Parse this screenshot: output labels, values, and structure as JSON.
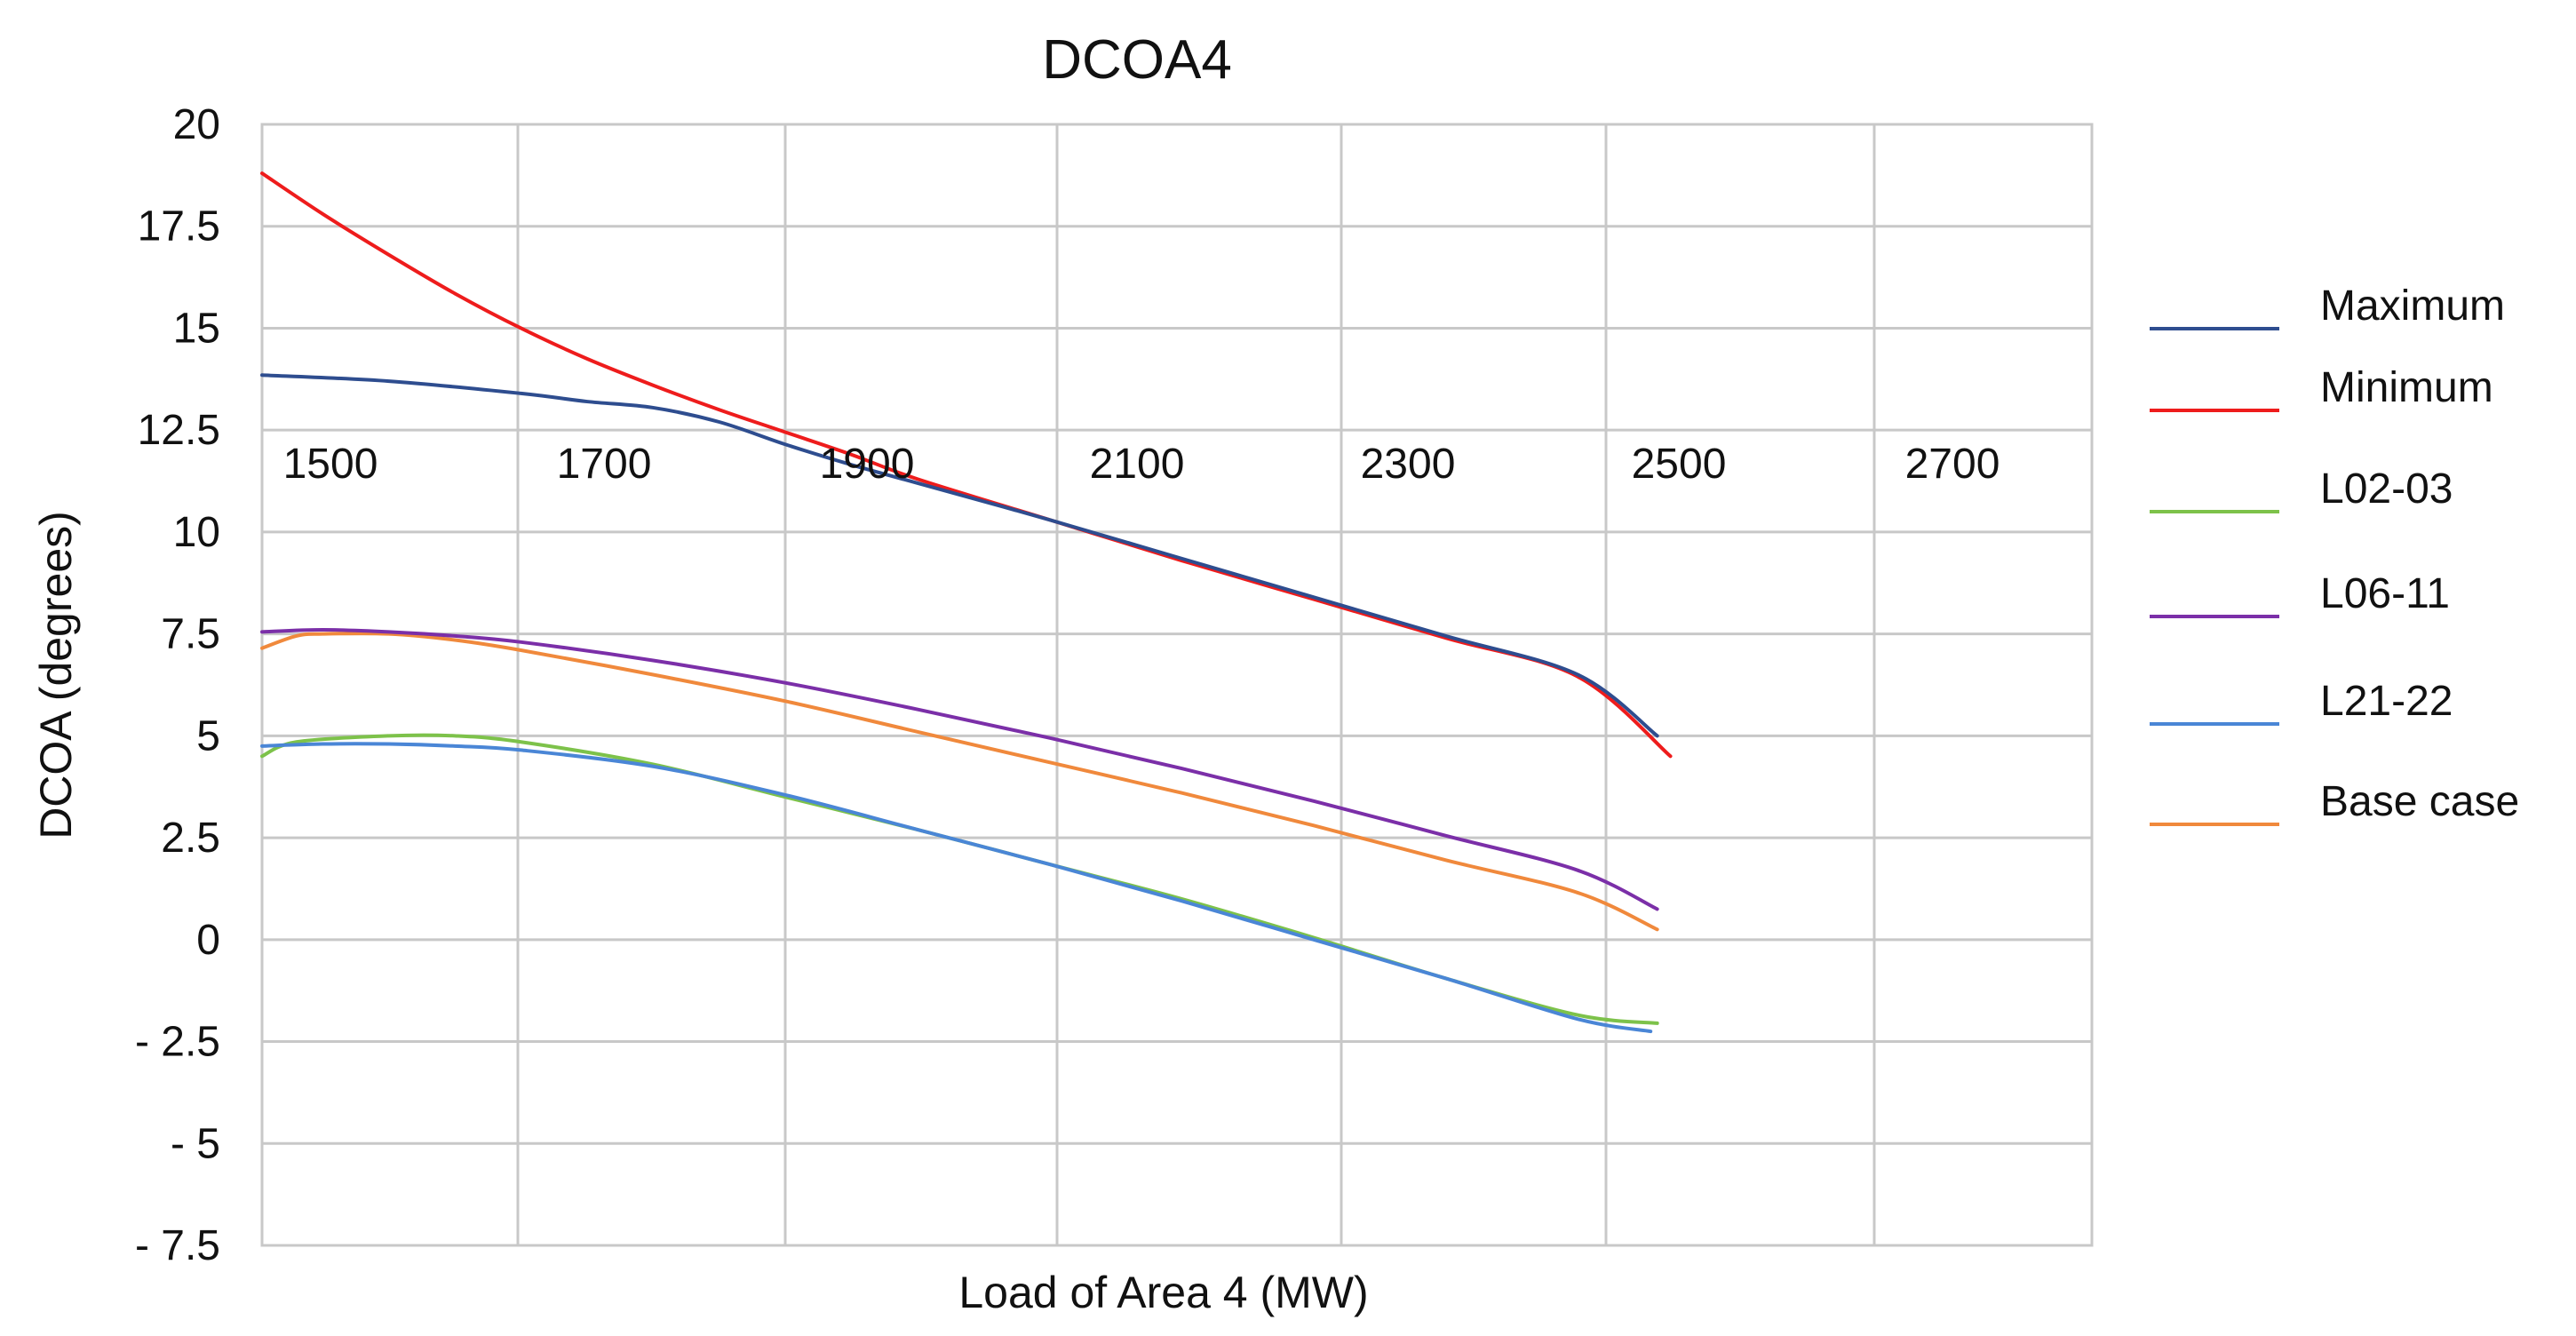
{
  "chart_data": {
    "type": "line",
    "title": "DCOA4",
    "xlabel": "Load of Area 4 (MW)",
    "ylabel": "DCOA (degrees)",
    "xlim": [
      1404,
      2789
    ],
    "ylim": [
      -7.5,
      20
    ],
    "x_ticks": [
      1500,
      1700,
      1900,
      2100,
      2300,
      2500,
      2700
    ],
    "x_tick_labels": [
      "1500",
      "1700",
      "1900",
      "2100",
      "2300",
      "2500",
      "2700"
    ],
    "y_ticks": [
      20,
      17.5,
      15,
      12.5,
      10,
      7.5,
      5,
      2.5,
      0,
      -2.5,
      -5,
      -7.5
    ],
    "y_tick_labels": [
      "20",
      "17.5",
      "15",
      "12.5",
      "10",
      "7.5",
      "5",
      "2.5",
      "0",
      "- 2.5",
      "- 5",
      "- 7.5"
    ],
    "grid": true,
    "legend_position": "right",
    "series": [
      {
        "name": "Maximum",
        "color": "#2e4d8f",
        "x": [
          1404,
          1500,
          1600,
          1650,
          1700,
          1750,
          1800,
          1850,
          1900,
          2000,
          2100,
          2200,
          2300,
          2400,
          2460
        ],
        "y": [
          13.85,
          13.7,
          13.4,
          13.2,
          13.05,
          12.7,
          12.15,
          11.65,
          11.2,
          10.3,
          9.35,
          8.4,
          7.45,
          6.5,
          5.0
        ]
      },
      {
        "name": "Minimum",
        "color": "#ee1c1c",
        "x": [
          1404,
          1450,
          1500,
          1550,
          1600,
          1650,
          1700,
          1750,
          1800,
          1850,
          1900,
          2000,
          2100,
          2200,
          2300,
          2400,
          2470
        ],
        "y": [
          18.8,
          17.8,
          16.8,
          15.85,
          15.0,
          14.25,
          13.6,
          13.0,
          12.45,
          11.9,
          11.3,
          10.3,
          9.3,
          8.35,
          7.4,
          6.45,
          4.5
        ]
      },
      {
        "name": "L02-03",
        "color": "#7dc24a",
        "x": [
          1404,
          1430,
          1500,
          1550,
          1600,
          1700,
          1800,
          1900,
          2000,
          2100,
          2200,
          2300,
          2400,
          2460
        ],
        "y": [
          4.5,
          4.85,
          5.0,
          5.0,
          4.85,
          4.3,
          3.5,
          2.7,
          1.85,
          1.0,
          0.05,
          -0.95,
          -1.85,
          -2.05
        ]
      },
      {
        "name": "L06-11",
        "color": "#7b2fa8",
        "x": [
          1404,
          1450,
          1500,
          1550,
          1600,
          1700,
          1800,
          1900,
          2000,
          2100,
          2200,
          2300,
          2400,
          2460
        ],
        "y": [
          7.55,
          7.6,
          7.55,
          7.45,
          7.3,
          6.85,
          6.3,
          5.65,
          4.95,
          4.2,
          3.4,
          2.55,
          1.7,
          0.75
        ]
      },
      {
        "name": "L21-22",
        "color": "#4a86d6",
        "x": [
          1404,
          1450,
          1500,
          1550,
          1600,
          1700,
          1800,
          1900,
          2000,
          2100,
          2200,
          2300,
          2400,
          2455
        ],
        "y": [
          4.75,
          4.8,
          4.8,
          4.75,
          4.65,
          4.25,
          3.55,
          2.7,
          1.85,
          0.95,
          0.0,
          -0.95,
          -1.95,
          -2.25
        ]
      },
      {
        "name": "Base case",
        "color": "#f0893c",
        "x": [
          1404,
          1430,
          1450,
          1500,
          1550,
          1600,
          1700,
          1800,
          1900,
          2000,
          2100,
          2200,
          2300,
          2400,
          2460
        ],
        "y": [
          7.15,
          7.45,
          7.5,
          7.5,
          7.35,
          7.1,
          6.5,
          5.85,
          5.1,
          4.35,
          3.6,
          2.8,
          1.95,
          1.15,
          0.25
        ]
      }
    ]
  }
}
